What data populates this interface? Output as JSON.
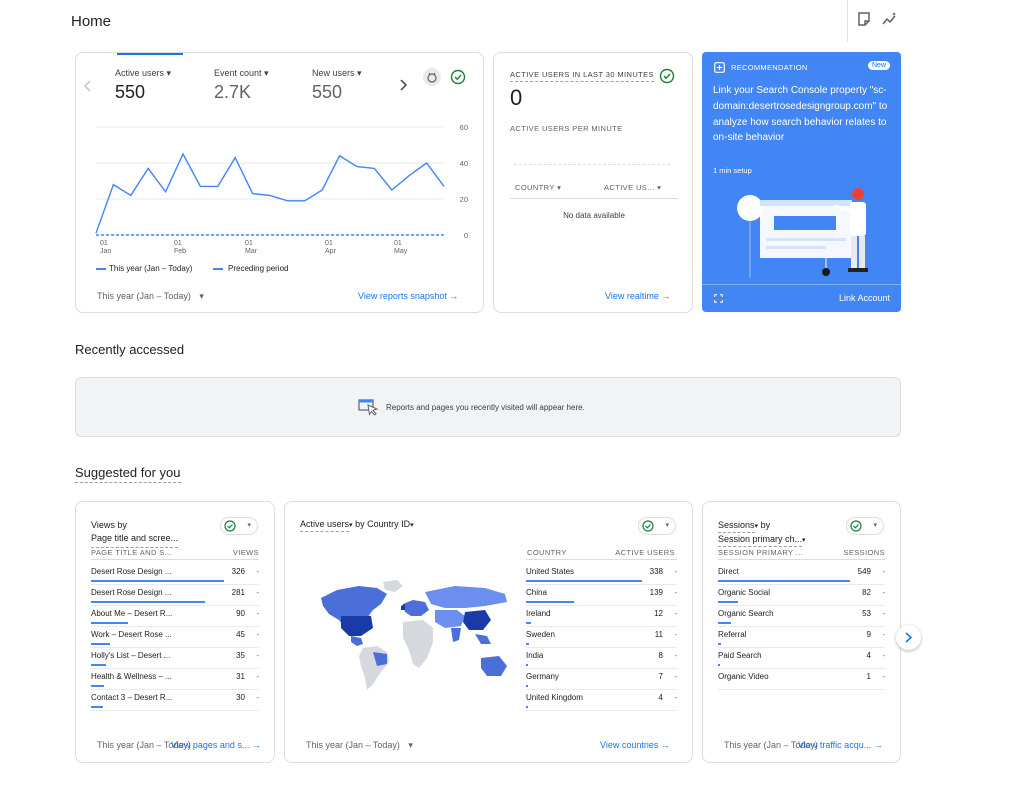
{
  "page": {
    "title": "Home"
  },
  "top_icons": [
    "notes-icon",
    "insights-icon"
  ],
  "overview": {
    "metrics": [
      {
        "label": "Active users",
        "value": "550"
      },
      {
        "label": "Event count",
        "value": "2.7K"
      },
      {
        "label": "New users",
        "value": "550"
      }
    ],
    "chart_data": {
      "type": "line",
      "x_tick_labels": [
        [
          "01",
          "Jan"
        ],
        [
          "01",
          "Feb"
        ],
        [
          "01",
          "Mar"
        ],
        [
          "01",
          "Apr"
        ],
        [
          "01",
          "May"
        ]
      ],
      "y_ticks": [
        0,
        20,
        40,
        60
      ],
      "ylim": [
        0,
        60
      ],
      "series": [
        {
          "name": "This year (Jan – Today)",
          "style": "solid",
          "color": "#4285f4",
          "values": [
            1,
            28,
            22,
            37,
            24,
            45,
            27,
            27,
            43,
            23,
            22,
            19,
            19,
            25,
            44,
            38,
            37,
            25,
            33,
            40,
            27
          ]
        },
        {
          "name": "Preceding period",
          "style": "dashed",
          "color": "#4285f4",
          "values": [
            0,
            0,
            0,
            0,
            0,
            0,
            0,
            0,
            0,
            0,
            0,
            0,
            0,
            0,
            0,
            0,
            0,
            0,
            0,
            0,
            0
          ]
        }
      ]
    },
    "legend": [
      "This year (Jan – Today)",
      "Preceding period"
    ],
    "date_range": "This year (Jan – Today)",
    "link": "View reports snapshot"
  },
  "realtime": {
    "title": "ACTIVE USERS IN LAST 30 MINUTES",
    "value": "0",
    "per_minute": "ACTIVE USERS PER MINUTE",
    "col_country": "COUNTRY",
    "col_users": "ACTIVE US...",
    "empty": "No data available",
    "link": "View realtime"
  },
  "recommendation": {
    "label": "RECOMMENDATION",
    "badge": "New",
    "text": "Link your Search Console property \"sc-domain:desertrosedesigngroup.com\" to analyze how search behavior relates to on-site behavior",
    "setup": "1 min setup",
    "action": "Link Account",
    "accent": "#4285f4"
  },
  "recent": {
    "title": "Recently accessed",
    "empty": "Reports and pages you recently visited will appear here."
  },
  "suggested": {
    "title": "Suggested for you",
    "views": {
      "title1": "Views by",
      "title2": "Page title and scree...",
      "col1": "PAGE TITLE AND S...",
      "col2": "VIEWS",
      "rows": [
        {
          "label": "Desert Rose Design ...",
          "value": "326",
          "pct": 1.0
        },
        {
          "label": "Desert Rose Design ...",
          "value": "281",
          "pct": 0.86
        },
        {
          "label": "About Me – Desert R...",
          "value": "90",
          "pct": 0.28
        },
        {
          "label": "Work – Desert Rose ...",
          "value": "45",
          "pct": 0.14
        },
        {
          "label": "Holly's List – Desert ...",
          "value": "35",
          "pct": 0.11
        },
        {
          "label": "Health & Wellness – ...",
          "value": "31",
          "pct": 0.1
        },
        {
          "label": "Contact 3 – Desert R...",
          "value": "30",
          "pct": 0.09
        }
      ],
      "date_range": "This year (Jan – Today)",
      "link": "View pages and s..."
    },
    "countries": {
      "title_metric": "Active users",
      "title_rest": "by Country ID",
      "col1": "COUNTRY",
      "col2": "ACTIVE USERS",
      "rows": [
        {
          "label": "United States",
          "value": "338",
          "pct": 1.0
        },
        {
          "label": "China",
          "value": "139",
          "pct": 0.41
        },
        {
          "label": "Ireland",
          "value": "12",
          "pct": 0.04
        },
        {
          "label": "Sweden",
          "value": "11",
          "pct": 0.03
        },
        {
          "label": "India",
          "value": "8",
          "pct": 0.02
        },
        {
          "label": "Germany",
          "value": "7",
          "pct": 0.02
        },
        {
          "label": "United Kingdom",
          "value": "4",
          "pct": 0.01
        }
      ],
      "date_range": "This year (Jan – Today)",
      "link": "View countries"
    },
    "sessions": {
      "title_metric": "Sessions",
      "title2": "by",
      "title3": "Session primary ch...",
      "col1": "SESSION PRIMARY ...",
      "col2": "SESSIONS",
      "rows": [
        {
          "label": "Direct",
          "value": "549",
          "pct": 1.0
        },
        {
          "label": "Organic Social",
          "value": "82",
          "pct": 0.15
        },
        {
          "label": "Organic Search",
          "value": "53",
          "pct": 0.1
        },
        {
          "label": "Referral",
          "value": "9",
          "pct": 0.02
        },
        {
          "label": "Paid Search",
          "value": "4",
          "pct": 0.01
        },
        {
          "label": "Organic Video",
          "value": "1",
          "pct": 0.0
        }
      ],
      "date_range": "This year (Jan – Today)",
      "link": "View traffic acqu..."
    }
  }
}
